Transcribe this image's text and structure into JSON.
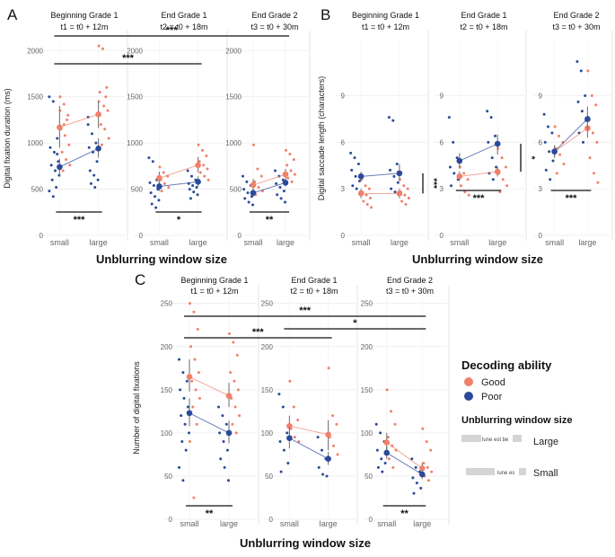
{
  "colors": {
    "good": "#f0806a",
    "poor": "#2b4a9a",
    "grid": "#ececec",
    "axis_text": "#666666",
    "bar": "#111111"
  },
  "legend": {
    "title": "Decoding ability",
    "good_label": "Good",
    "poor_label": "Poor",
    "window_title": "Unblurring window size",
    "sample_text": "lune est be",
    "sample_text_small": "lune es",
    "large_label": "Large",
    "small_label": "Small"
  },
  "chart_data": [
    {
      "id": "A",
      "type": "scatter",
      "panel_letter": "A",
      "xlabel": "Unblurring window size",
      "ylabel": "Digital fixation duration (ms)",
      "ylim": [
        0,
        2100
      ],
      "yticks": [
        0,
        500,
        1000,
        1500,
        2000
      ],
      "categories": [
        "small",
        "large"
      ],
      "facets": [
        {
          "title": "Beginning Grade 1",
          "subtitle": "t1 = t0 + 12m",
          "means": {
            "good": [
              1170,
              1310
            ],
            "poor": [
              740,
              940
            ]
          },
          "ci": {
            "good": [
              [
                950,
                1400
              ],
              [
                1160,
                1450
              ]
            ],
            "poor": [
              [
                650,
                830
              ],
              [
                840,
                1050
              ]
            ]
          },
          "good_pts": [
            [
              1500,
              1420,
              1300,
              1150,
              1080,
              980,
              900,
              820,
              760,
              700,
              1250,
              1350,
              1200
            ],
            [
              2050,
              2020,
              1600,
              1550,
              1400,
              1350,
              1200,
              1150,
              1050,
              980,
              1500,
              1450
            ]
          ],
          "poor_pts": [
            [
              1500,
              1450,
              1050,
              950,
              900,
              800,
              760,
              700,
              650,
              600,
              520,
              480,
              420,
              880
            ],
            [
              1200,
              1100,
              1000,
              950,
              900,
              800,
              700,
              650,
              600,
              560,
              520,
              1280
            ]
          ],
          "sig": "***"
        },
        {
          "title": "End Grade 1",
          "subtitle": "t2 = t0 + 18m",
          "means": {
            "good": [
              620,
              760
            ],
            "poor": [
              530,
              580
            ]
          },
          "ci": {
            "good": [
              [
                560,
                690
              ],
              [
                680,
                850
              ]
            ],
            "poor": [
              [
                480,
                590
              ],
              [
                530,
                640
              ]
            ]
          },
          "good_pts": [
            [
              740,
              680,
              640,
              600,
              560,
              520,
              480
            ],
            [
              980,
              920,
              860,
              800,
              760,
              720,
              680,
              640,
              600
            ]
          ],
          "poor_pts": [
            [
              840,
              800,
              600,
              570,
              540,
              500,
              460,
              420,
              380,
              340,
              300
            ],
            [
              700,
              640,
              600,
              560,
              540,
              520,
              500,
              470,
              440,
              400
            ]
          ],
          "sig": "*"
        },
        {
          "title": "End Grade 2",
          "subtitle": "t3 = t0 + 30m",
          "means": {
            "good": [
              545,
              660
            ],
            "poor": [
              460,
              570
            ]
          },
          "ci": {
            "good": [
              [
                490,
                610
              ],
              [
                600,
                720
              ]
            ],
            "poor": [
              [
                420,
                500
              ],
              [
                530,
                620
              ]
            ]
          },
          "good_pts": [
            [
              980,
              720,
              640,
              580,
              520,
              480,
              440
            ],
            [
              920,
              880,
              820,
              760,
              700,
              660,
              620,
              580
            ]
          ],
          "poor_pts": [
            [
              640,
              580,
              540,
              500,
              460,
              420,
              400,
              360,
              330
            ],
            [
              700,
              640,
              600,
              560,
              520,
              480,
              440,
              400,
              360
            ]
          ],
          "sig": "**"
        }
      ],
      "cross_sig": [
        {
          "label": "***",
          "from": 0,
          "to": 2
        },
        {
          "label": "***",
          "from": 0,
          "to": 1
        }
      ]
    },
    {
      "id": "B",
      "type": "scatter",
      "panel_letter": "B",
      "xlabel": "Unblurring window size",
      "ylabel": "Digital saccade length (characters)",
      "ylim": [
        0,
        12.5
      ],
      "yticks": [
        0,
        3,
        6,
        9
      ],
      "categories": [
        "small",
        "large"
      ],
      "facets": [
        {
          "title": "Beginning Grade 1",
          "subtitle": "t1 = t0 + 12m",
          "means": {
            "good": [
              2.7,
              2.7
            ],
            "poor": [
              3.8,
              4.0
            ]
          },
          "ci": {
            "good": [
              [
                2.4,
                3.0
              ],
              [
                2.4,
                3.0
              ]
            ],
            "poor": [
              [
                3.5,
                4.1
              ],
              [
                3.5,
                4.6
              ]
            ]
          },
          "good_pts": [
            [
              3.6,
              3.2,
              3.0,
              2.8,
              2.6,
              2.4,
              2.2,
              2.0,
              1.8
            ],
            [
              3.6,
              3.2,
              3.0,
              2.8,
              2.6,
              2.4,
              2.2,
              2.0
            ]
          ],
          "poor_pts": [
            [
              5.3,
              5.0,
              4.6,
              4.2,
              3.8,
              3.5,
              3.2,
              3.0,
              2.8
            ],
            [
              7.6,
              7.4,
              4.6,
              4.2,
              3.8,
              3.4,
              3.0,
              2.8
            ]
          ],
          "sig": "",
          "side_sig": "***"
        },
        {
          "title": "End Grade 1",
          "subtitle": "t2 = t0 + 18m",
          "means": {
            "good": [
              3.8,
              4.1
            ],
            "poor": [
              4.8,
              5.9
            ]
          },
          "ci": {
            "good": [
              [
                3.5,
                4.1
              ],
              [
                3.8,
                4.4
              ]
            ],
            "poor": [
              [
                4.3,
                5.3
              ],
              [
                5.2,
                6.5
              ]
            ]
          },
          "good_pts": [
            [
              4.4,
              4.0,
              3.6,
              3.2,
              2.8,
              2.6
            ],
            [
              5.6,
              5.0,
              4.4,
              4.0,
              3.6,
              3.2,
              2.8
            ]
          ],
          "poor_pts": [
            [
              7.6,
              6.0,
              5.0,
              4.4,
              4.0,
              3.6,
              3.2
            ],
            [
              8.0,
              7.6,
              6.4,
              6.0,
              5.0,
              4.4,
              4.0,
              3.6
            ]
          ],
          "sig": "***",
          "side_sig": "*"
        },
        {
          "title": "End Grade 2",
          "subtitle": "t3 = t0 + 30m",
          "means": {
            "good": [
              5.4,
              6.9
            ],
            "poor": [
              5.4,
              7.5
            ]
          },
          "ci": {
            "good": [
              [
                5.0,
                5.8
              ],
              [
                6.3,
                7.6
              ]
            ],
            "poor": [
              [
                5.0,
                5.8
              ],
              [
                6.8,
                8.3
              ]
            ]
          },
          "good_pts": [
            [
              7.0,
              6.4,
              6.0,
              5.6,
              5.2,
              4.6,
              4.0
            ],
            [
              10.6,
              9.0,
              8.4,
              7.4,
              6.6,
              6.0,
              5.0,
              4.0,
              3.4
            ]
          ],
          "poor_pts": [
            [
              7.8,
              7.0,
              6.6,
              6.0,
              5.4,
              4.8,
              4.2,
              3.6
            ],
            [
              11.2,
              10.6,
              9.0,
              8.6,
              8.0,
              7.4,
              6.6,
              6.0
            ]
          ],
          "sig": "***"
        }
      ],
      "cross_sig": []
    },
    {
      "id": "C",
      "type": "scatter",
      "panel_letter": "C",
      "xlabel": "Unblurring window size",
      "ylabel": "Number of digital fixations",
      "ylim": [
        0,
        258
      ],
      "yticks": [
        0,
        50,
        100,
        150,
        200,
        250
      ],
      "categories": [
        "small",
        "large"
      ],
      "facets": [
        {
          "title": "Beginning Grade 1",
          "subtitle": "t1 = t0 + 12m",
          "means": {
            "good": [
              165,
              143
            ],
            "poor": [
              123,
              100
            ]
          },
          "ci": {
            "good": [
              [
                148,
                185
              ],
              [
                130,
                158
              ]
            ],
            "poor": [
              [
                108,
                140
              ],
              [
                88,
                114
              ]
            ]
          },
          "good_pts": [
            [
              250,
              240,
              220,
              200,
              185,
              170,
              160,
              150,
              140,
              130,
              110,
              90,
              25
            ],
            [
              215,
              205,
              190,
              170,
              160,
              150,
              140,
              130,
              120,
              110,
              100
            ]
          ],
          "poor_pts": [
            [
              185,
              170,
              160,
              150,
              140,
              130,
              120,
              110,
              100,
              90,
              80,
              60,
              45
            ],
            [
              130,
              120,
              110,
              100,
              90,
              80,
              70,
              60,
              45
            ]
          ],
          "sig": "**"
        },
        {
          "title": "End Grade 1",
          "subtitle": "t2 = t0 + 18m",
          "means": {
            "good": [
              108,
              98
            ],
            "poor": [
              94,
              70
            ]
          },
          "ci": {
            "good": [
              [
                98,
                120
              ],
              [
                80,
                115
              ]
            ],
            "poor": [
              [
                82,
                107
              ],
              [
                63,
                78
              ]
            ]
          },
          "good_pts": [
            [
              160,
              130,
              115,
              105,
              95,
              90
            ],
            [
              175,
              120,
              110,
              95,
              85,
              75
            ]
          ],
          "poor_pts": [
            [
              145,
              130,
              100,
              90,
              80,
              65,
              55
            ],
            [
              95,
              80,
              70,
              60,
              52,
              50
            ]
          ],
          "sig": ""
        },
        {
          "title": "End Grade 2",
          "subtitle": "t3 = t0 + 30m",
          "means": {
            "good": [
              89,
              59
            ],
            "poor": [
              77,
              52
            ]
          },
          "ci": {
            "good": [
              [
                78,
                100
              ],
              [
                53,
                65
              ]
            ],
            "poor": [
              [
                70,
                85
              ],
              [
                47,
                57
              ]
            ]
          },
          "good_pts": [
            [
              150,
              125,
              110,
              95,
              85,
              80,
              70,
              60
            ],
            [
              105,
              90,
              80,
              65,
              60,
              55,
              50,
              45
            ]
          ],
          "poor_pts": [
            [
              110,
              100,
              90,
              80,
              70,
              65,
              60,
              55
            ],
            [
              70,
              60,
              55,
              48,
              42,
              36,
              30
            ]
          ],
          "sig": "**"
        }
      ],
      "cross_sig": [
        {
          "label": "***",
          "from": 0,
          "to": 2
        },
        {
          "label": "***",
          "from": 0,
          "to": 1
        },
        {
          "label": "*",
          "from": 1,
          "to": 2
        }
      ]
    }
  ]
}
